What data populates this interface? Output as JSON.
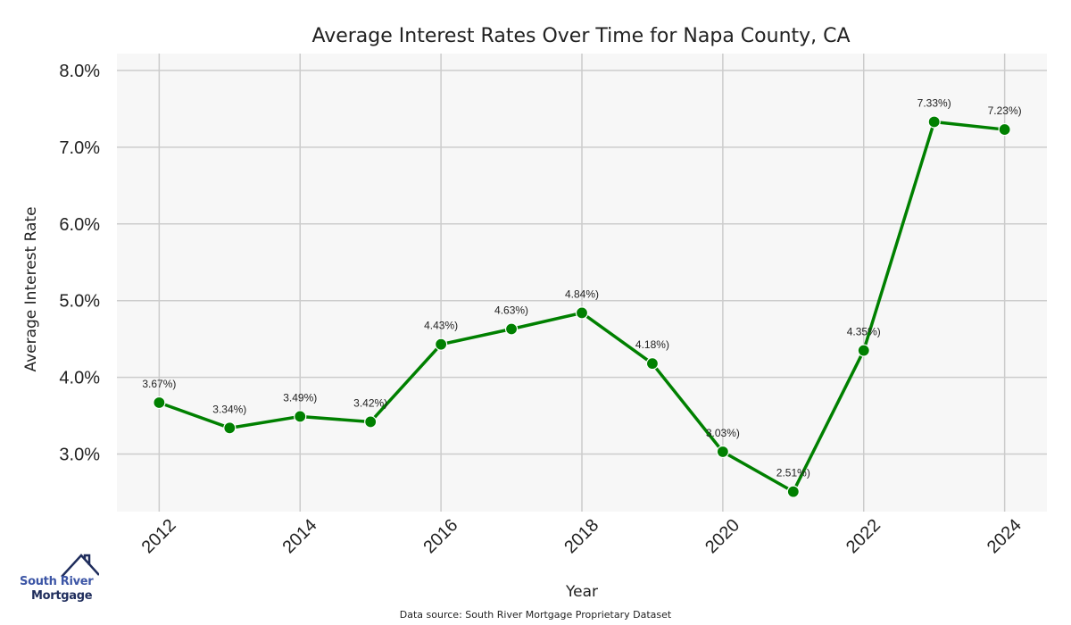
{
  "chart_data": {
    "type": "line",
    "title": "Average Interest Rates Over Time for Napa County, CA",
    "xlabel": "Year",
    "ylabel": "Average Interest Rate",
    "x": [
      2012,
      2013,
      2014,
      2015,
      2016,
      2017,
      2018,
      2019,
      2020,
      2021,
      2022,
      2023,
      2024
    ],
    "series": [
      {
        "name": "Average Interest Rate",
        "color": "#008000",
        "values": [
          3.67,
          3.34,
          3.49,
          3.42,
          4.43,
          4.63,
          4.84,
          4.18,
          3.03,
          2.51,
          4.35,
          7.33,
          7.23
        ],
        "data_labels": [
          "3.67%)",
          "3.34%)",
          "3.49%)",
          "3.42%)",
          "4.43%)",
          "4.63%)",
          "4.84%)",
          "4.18%)",
          "3.03%)",
          "2.51%)",
          "4.35%)",
          "7.33%)",
          "7.23%)"
        ]
      }
    ],
    "xticks": [
      "2012",
      "2014",
      "2016",
      "2018",
      "2020",
      "2022",
      "2024"
    ],
    "xtick_values": [
      2012,
      2014,
      2016,
      2018,
      2020,
      2022,
      2024
    ],
    "yticks": [
      "3.0%",
      "4.0%",
      "5.0%",
      "6.0%",
      "7.0%",
      "8.0%"
    ],
    "ytick_values": [
      3.0,
      4.0,
      5.0,
      6.0,
      7.0,
      8.0
    ],
    "xlim": [
      2011.4,
      2024.6
    ],
    "ylim": [
      2.25,
      8.22
    ],
    "grid": true,
    "legend": "none",
    "background": "#f7f7f7",
    "grid_color": "#cccccc"
  },
  "footer": {
    "source": "Data source: South River Mortgage Proprietary Dataset"
  },
  "logo": {
    "line1": "South River",
    "line2": "Mortgage"
  }
}
